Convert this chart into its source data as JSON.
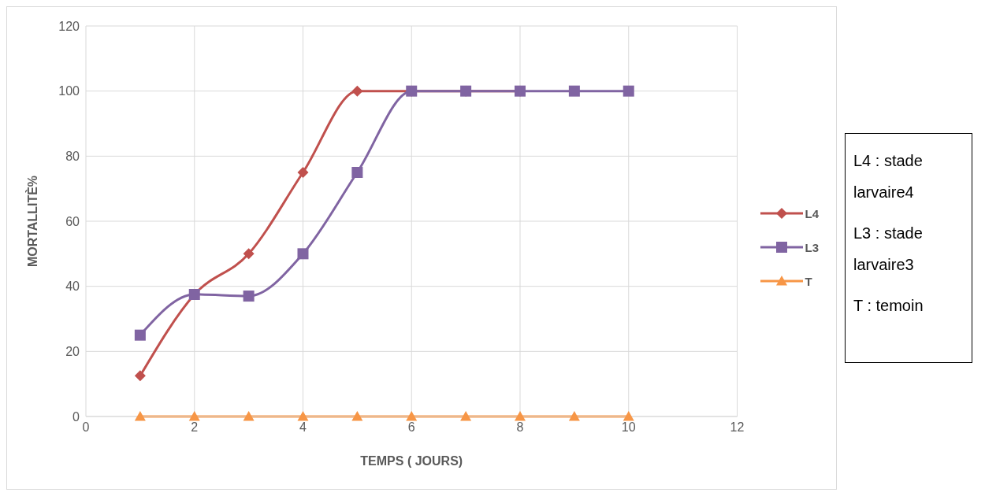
{
  "chart_data": {
    "type": "line",
    "xlabel": "TEMPS ( JOURS)",
    "ylabel": "MORTALLITÈ%",
    "x": [
      1,
      2,
      3,
      4,
      5,
      6,
      7,
      8,
      9,
      10
    ],
    "series": [
      {
        "name": "L4",
        "color": "#c0504d",
        "marker": "diamond",
        "values": [
          12.5,
          37.5,
          50,
          75,
          100,
          100,
          100,
          100,
          null,
          null
        ]
      },
      {
        "name": "L3",
        "color": "#8064a2",
        "marker": "square",
        "values": [
          25,
          37.5,
          37,
          50,
          75,
          100,
          100,
          100,
          100,
          100
        ]
      },
      {
        "name": "T",
        "color": "#f79646",
        "marker": "triangle",
        "values": [
          0,
          0,
          0,
          0,
          0,
          0,
          0,
          0,
          0,
          0
        ]
      }
    ],
    "xlim": [
      0,
      12
    ],
    "xticks": [
      0,
      2,
      4,
      6,
      8,
      10,
      12
    ],
    "ylim": [
      0,
      120
    ],
    "yticks": [
      0,
      20,
      40,
      60,
      80,
      100,
      120
    ],
    "grid": true,
    "legend": "right",
    "line_style": "solid",
    "annotations": [
      "L4 : stade larvaire4",
      "L3 : stade larvaire3",
      "T : temoin"
    ]
  }
}
